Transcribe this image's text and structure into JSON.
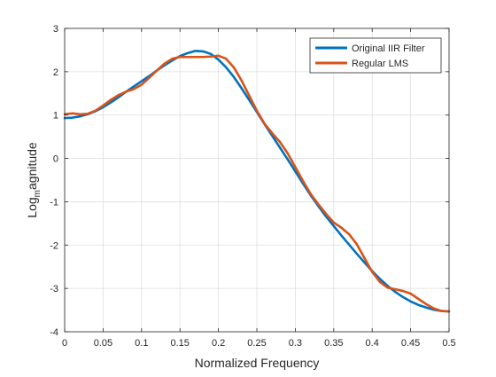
{
  "chart_data": {
    "type": "line",
    "title": "",
    "xlabel": "Normalized Frequency",
    "ylabel_main": "Log",
    "ylabel_sub": "m",
    "ylabel_tail": "agnitude",
    "xlim": [
      0,
      0.5
    ],
    "ylim": [
      -4,
      3
    ],
    "xticks": [
      0,
      0.05,
      0.1,
      0.15,
      0.2,
      0.25,
      0.3,
      0.35,
      0.4,
      0.45,
      0.5
    ],
    "xtick_labels": [
      "0",
      "0.05",
      "0.1",
      "0.15",
      "0.2",
      "0.25",
      "0.3",
      "0.35",
      "0.4",
      "0.45",
      "0.5"
    ],
    "yticks": [
      -4,
      -3,
      -2,
      -1,
      0,
      1,
      2,
      3
    ],
    "ytick_labels": [
      "-4",
      "-3",
      "-2",
      "-1",
      "0",
      "1",
      "2",
      "3"
    ],
    "grid": true,
    "legend_position": "top-right",
    "series": [
      {
        "name": "Original IIR Filter",
        "color": "#0072BD",
        "x": [
          0,
          0.01,
          0.02,
          0.03,
          0.04,
          0.05,
          0.06,
          0.07,
          0.08,
          0.09,
          0.1,
          0.11,
          0.12,
          0.13,
          0.14,
          0.15,
          0.16,
          0.17,
          0.18,
          0.19,
          0.2,
          0.21,
          0.22,
          0.23,
          0.24,
          0.25,
          0.26,
          0.27,
          0.28,
          0.29,
          0.3,
          0.31,
          0.32,
          0.33,
          0.34,
          0.35,
          0.36,
          0.37,
          0.38,
          0.39,
          0.4,
          0.41,
          0.42,
          0.43,
          0.44,
          0.45,
          0.46,
          0.47,
          0.48,
          0.49,
          0.5
        ],
        "y": [
          0.93,
          0.94,
          0.97,
          1.02,
          1.09,
          1.18,
          1.29,
          1.41,
          1.54,
          1.66,
          1.78,
          1.9,
          2.03,
          2.15,
          2.26,
          2.36,
          2.43,
          2.48,
          2.47,
          2.41,
          2.28,
          2.1,
          1.88,
          1.62,
          1.35,
          1.07,
          0.79,
          0.52,
          0.25,
          -0.02,
          -0.3,
          -0.58,
          -0.85,
          -1.1,
          -1.34,
          -1.56,
          -1.78,
          -1.99,
          -2.2,
          -2.4,
          -2.6,
          -2.78,
          -2.94,
          -3.08,
          -3.2,
          -3.3,
          -3.38,
          -3.44,
          -3.49,
          -3.52,
          -3.53
        ]
      },
      {
        "name": "Regular LMS",
        "color": "#D95319",
        "x": [
          0,
          0.01,
          0.02,
          0.03,
          0.04,
          0.05,
          0.06,
          0.07,
          0.08,
          0.09,
          0.1,
          0.11,
          0.12,
          0.13,
          0.14,
          0.15,
          0.16,
          0.17,
          0.18,
          0.19,
          0.2,
          0.21,
          0.22,
          0.23,
          0.24,
          0.25,
          0.26,
          0.27,
          0.28,
          0.29,
          0.3,
          0.31,
          0.32,
          0.33,
          0.34,
          0.35,
          0.36,
          0.37,
          0.38,
          0.39,
          0.4,
          0.41,
          0.42,
          0.43,
          0.44,
          0.45,
          0.46,
          0.47,
          0.48,
          0.49,
          0.5
        ],
        "y": [
          1.02,
          1.04,
          1.02,
          1.03,
          1.1,
          1.22,
          1.35,
          1.46,
          1.54,
          1.6,
          1.7,
          1.86,
          2.03,
          2.19,
          2.3,
          2.34,
          2.34,
          2.34,
          2.34,
          2.35,
          2.37,
          2.3,
          2.1,
          1.8,
          1.45,
          1.1,
          0.8,
          0.58,
          0.38,
          0.12,
          -0.2,
          -0.52,
          -0.82,
          -1.06,
          -1.28,
          -1.48,
          -1.6,
          -1.75,
          -1.98,
          -2.3,
          -2.62,
          -2.85,
          -2.98,
          -3.02,
          -3.06,
          -3.12,
          -3.24,
          -3.36,
          -3.46,
          -3.52,
          -3.53
        ]
      }
    ]
  }
}
